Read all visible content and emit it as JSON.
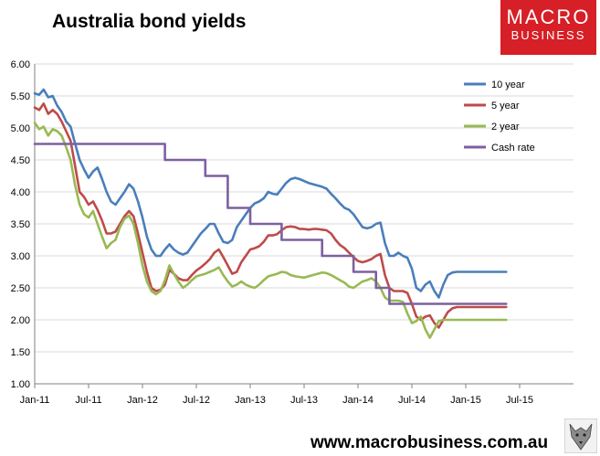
{
  "title": "Australia bond yields",
  "logo": {
    "line1": "MACRO",
    "line2": "BUSINESS"
  },
  "footer": {
    "url": "www.macrobusiness.com.au"
  },
  "colors": {
    "ten_year": "#4a7ebb",
    "five_year": "#be4b48",
    "two_year": "#98b954",
    "cash_rate": "#7d60a0",
    "grid": "#d9d9d9",
    "logo_bg": "#d61f26"
  },
  "chart_data": {
    "type": "line",
    "title": "Australia bond yields",
    "xlabel": "",
    "ylabel": "",
    "ylim": [
      1.0,
      6.0
    ],
    "yticks": [
      "1.00",
      "1.50",
      "2.00",
      "2.50",
      "3.00",
      "3.50",
      "4.00",
      "4.50",
      "5.00",
      "5.50",
      "6.00"
    ],
    "xticks": [
      "Jan-11",
      "Jul-11",
      "Jan-12",
      "Jul-12",
      "Jan-13",
      "Jul-13",
      "Jan-14",
      "Jul-14",
      "Jan-15",
      "Jul-15"
    ],
    "grid": "horizontal",
    "legend": "top-right",
    "series": [
      {
        "name": "10 year",
        "x": [
          0,
          0.5,
          1,
          1.5,
          2,
          2.5,
          3,
          3.5,
          4,
          4.5,
          5,
          5.5,
          6,
          6.5,
          7,
          7.5,
          8,
          8.5,
          9,
          9.5,
          10,
          10.5,
          11,
          11.5,
          12,
          12.5,
          13,
          13.5,
          14,
          14.5,
          15,
          15.5,
          16,
          16.5,
          17,
          17.5,
          18,
          18.5,
          19,
          19.5,
          20,
          20.5,
          21,
          21.5,
          22,
          22.5,
          23,
          23.5,
          24,
          24.5,
          25,
          25.5,
          26,
          26.5,
          27,
          27.5,
          28,
          28.5,
          29,
          29.5,
          30,
          30.5,
          31,
          31.5,
          32,
          32.5,
          33,
          33.5,
          34,
          34.5,
          35,
          35.5,
          36,
          36.5,
          37,
          37.5,
          38,
          38.5,
          39,
          39.5,
          40,
          40.5,
          41,
          41.5,
          42,
          42.5,
          43,
          43.5,
          44,
          44.5,
          45,
          45.5,
          46,
          46.5,
          47,
          47.5,
          48,
          48.5,
          49,
          49.5,
          50,
          50.5,
          51,
          51.5,
          52,
          52.5
        ],
        "values": [
          5.54,
          5.52,
          5.6,
          5.48,
          5.5,
          5.35,
          5.25,
          5.1,
          5.02,
          4.75,
          4.5,
          4.35,
          4.22,
          4.32,
          4.38,
          4.2,
          4.0,
          3.85,
          3.8,
          3.9,
          4.0,
          4.12,
          4.05,
          3.85,
          3.6,
          3.3,
          3.1,
          3.0,
          3.0,
          3.1,
          3.18,
          3.1,
          3.05,
          3.02,
          3.05,
          3.15,
          3.25,
          3.35,
          3.42,
          3.5,
          3.5,
          3.35,
          3.22,
          3.2,
          3.25,
          3.45,
          3.55,
          3.65,
          3.75,
          3.82,
          3.85,
          3.9,
          4.0,
          3.97,
          3.96,
          4.05,
          4.14,
          4.2,
          4.22,
          4.2,
          4.17,
          4.14,
          4.12,
          4.1,
          4.08,
          4.05,
          3.97,
          3.9,
          3.82,
          3.75,
          3.72,
          3.65,
          3.55,
          3.45,
          3.43,
          3.45,
          3.5,
          3.52,
          3.2,
          3.0,
          3.0,
          3.05,
          3.0,
          2.97,
          2.8,
          2.5,
          2.45,
          2.55,
          2.6,
          2.45,
          2.35,
          2.55,
          2.7,
          2.74,
          2.75,
          2.75,
          2.75,
          2.75,
          2.75,
          2.75,
          2.75,
          2.75,
          2.75,
          2.75,
          2.75,
          2.75
        ]
      },
      {
        "name": "5 year",
        "x": [
          0,
          0.5,
          1,
          1.5,
          2,
          2.5,
          3,
          3.5,
          4,
          4.5,
          5,
          5.5,
          6,
          6.5,
          7,
          7.5,
          8,
          8.5,
          9,
          9.5,
          10,
          10.5,
          11,
          11.5,
          12,
          12.5,
          13,
          13.5,
          14,
          14.5,
          15,
          15.5,
          16,
          16.5,
          17,
          17.5,
          18,
          18.5,
          19,
          19.5,
          20,
          20.5,
          21,
          21.5,
          22,
          22.5,
          23,
          23.5,
          24,
          24.5,
          25,
          25.5,
          26,
          26.5,
          27,
          27.5,
          28,
          28.5,
          29,
          29.5,
          30,
          30.5,
          31,
          31.5,
          32,
          32.5,
          33,
          33.5,
          34,
          34.5,
          35,
          35.5,
          36,
          36.5,
          37,
          37.5,
          38,
          38.5,
          39,
          39.5,
          40,
          40.5,
          41,
          41.5,
          42,
          42.5,
          43,
          43.5,
          44,
          44.5,
          45,
          45.5,
          46,
          46.5,
          47,
          47.5,
          48,
          48.5,
          49,
          49.5,
          50,
          50.5,
          51,
          51.5,
          52,
          52.5
        ],
        "values": [
          5.32,
          5.28,
          5.38,
          5.22,
          5.28,
          5.22,
          5.1,
          4.95,
          4.8,
          4.4,
          4.0,
          3.92,
          3.8,
          3.85,
          3.72,
          3.55,
          3.35,
          3.35,
          3.38,
          3.5,
          3.62,
          3.7,
          3.62,
          3.35,
          3.05,
          2.75,
          2.5,
          2.45,
          2.47,
          2.55,
          2.78,
          2.72,
          2.65,
          2.62,
          2.62,
          2.7,
          2.77,
          2.82,
          2.88,
          2.95,
          3.05,
          3.1,
          2.98,
          2.85,
          2.72,
          2.75,
          2.9,
          3.0,
          3.1,
          3.12,
          3.15,
          3.22,
          3.32,
          3.32,
          3.34,
          3.4,
          3.45,
          3.46,
          3.45,
          3.42,
          3.42,
          3.41,
          3.42,
          3.42,
          3.41,
          3.4,
          3.35,
          3.25,
          3.17,
          3.12,
          3.05,
          2.98,
          2.92,
          2.9,
          2.92,
          2.95,
          3.0,
          3.03,
          2.7,
          2.5,
          2.45,
          2.45,
          2.45,
          2.42,
          2.25,
          2.05,
          2.0,
          2.05,
          2.07,
          1.95,
          1.88,
          2.0,
          2.12,
          2.18,
          2.2,
          2.2,
          2.2,
          2.2,
          2.2,
          2.2,
          2.2,
          2.2,
          2.2,
          2.2,
          2.2,
          2.2
        ]
      },
      {
        "name": "2 year",
        "x": [
          0,
          0.5,
          1,
          1.5,
          2,
          2.5,
          3,
          3.5,
          4,
          4.5,
          5,
          5.5,
          6,
          6.5,
          7,
          7.5,
          8,
          8.5,
          9,
          9.5,
          10,
          10.5,
          11,
          11.5,
          12,
          12.5,
          13,
          13.5,
          14,
          14.5,
          15,
          15.5,
          16,
          16.5,
          17,
          17.5,
          18,
          18.5,
          19,
          19.5,
          20,
          20.5,
          21,
          21.5,
          22,
          22.5,
          23,
          23.5,
          24,
          24.5,
          25,
          25.5,
          26,
          26.5,
          27,
          27.5,
          28,
          28.5,
          29,
          29.5,
          30,
          30.5,
          31,
          31.5,
          32,
          32.5,
          33,
          33.5,
          34,
          34.5,
          35,
          35.5,
          36,
          36.5,
          37,
          37.5,
          38,
          38.5,
          39,
          39.5,
          40,
          40.5,
          41,
          41.5,
          42,
          42.5,
          43,
          43.5,
          44,
          44.5,
          45,
          45.5,
          46,
          46.5,
          47,
          47.5,
          48,
          48.5,
          49,
          49.5,
          50,
          50.5,
          51,
          51.5,
          52,
          52.5
        ],
        "values": [
          5.08,
          4.98,
          5.02,
          4.88,
          4.98,
          4.95,
          4.88,
          4.7,
          4.5,
          4.1,
          3.8,
          3.65,
          3.6,
          3.7,
          3.5,
          3.3,
          3.12,
          3.2,
          3.25,
          3.45,
          3.58,
          3.63,
          3.5,
          3.2,
          2.85,
          2.6,
          2.45,
          2.4,
          2.45,
          2.62,
          2.85,
          2.72,
          2.6,
          2.5,
          2.55,
          2.62,
          2.68,
          2.7,
          2.72,
          2.75,
          2.78,
          2.82,
          2.7,
          2.6,
          2.52,
          2.55,
          2.6,
          2.55,
          2.52,
          2.5,
          2.55,
          2.62,
          2.68,
          2.7,
          2.72,
          2.75,
          2.74,
          2.7,
          2.68,
          2.67,
          2.66,
          2.68,
          2.7,
          2.72,
          2.74,
          2.73,
          2.7,
          2.66,
          2.62,
          2.58,
          2.52,
          2.5,
          2.55,
          2.6,
          2.62,
          2.65,
          2.6,
          2.5,
          2.35,
          2.3,
          2.3,
          2.3,
          2.28,
          2.1,
          1.95,
          1.98,
          2.05,
          1.85,
          1.72,
          1.85,
          1.98,
          2.0,
          2.0,
          2.0,
          2.0,
          2.0,
          2.0,
          2.0,
          2.0,
          2.0,
          2.0,
          2.0,
          2.0,
          2.0,
          2.0,
          2.0
        ]
      },
      {
        "name": "Cash rate",
        "x": [
          0,
          14.5,
          14.5,
          19,
          19,
          21.5,
          21.5,
          24,
          24,
          27.5,
          27.5,
          32,
          32,
          35.5,
          35.5,
          38,
          38,
          39.5,
          39.5,
          52.5
        ],
        "values": [
          4.75,
          4.75,
          4.5,
          4.5,
          4.25,
          4.25,
          3.75,
          3.75,
          3.5,
          3.5,
          3.25,
          3.25,
          3.0,
          3.0,
          2.75,
          2.75,
          2.5,
          2.5,
          2.25,
          2.25
        ]
      }
    ]
  }
}
